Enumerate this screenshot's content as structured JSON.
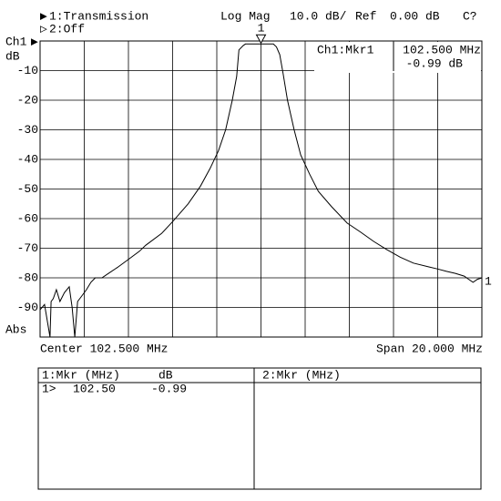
{
  "header": {
    "trace1": "1:Transmission",
    "trace2": "2:Off",
    "format": "Log Mag",
    "scale": "10.0 dB/",
    "ref": "Ref",
    "ref_value": "0.00 dB",
    "cal": "C?"
  },
  "axis_labels": {
    "channel": "Ch1",
    "unit": "dB",
    "abs": "Abs",
    "center": "Center 102.500 MHz",
    "span": "Span 20.000 MHz",
    "ref_pos": "1"
  },
  "readout": {
    "title": "Ch1:Mkr1",
    "freq": "102.500 MHz",
    "value": "-0.99 dB"
  },
  "chart_data": {
    "type": "line",
    "xlim": [
      92.5,
      112.5
    ],
    "ylim": [
      -100,
      0
    ],
    "yticks": [
      -10,
      -20,
      -30,
      -40,
      -50,
      -60,
      -70,
      -80,
      -90
    ],
    "grid": true,
    "series": [
      {
        "name": "1:Transmission",
        "color": "#000000",
        "x": [
          92.5,
          92.7,
          92.95,
          93.0,
          93.1,
          93.24,
          93.4,
          93.6,
          93.82,
          93.95,
          94.07,
          94.2,
          94.4,
          94.6,
          94.8,
          95.0,
          95.3,
          95.6,
          96.0,
          96.46,
          97.0,
          97.28,
          98.0,
          98.5,
          99.2,
          99.76,
          100.2,
          100.58,
          100.9,
          101.2,
          101.4,
          101.5,
          101.7,
          101.8,
          102.2,
          102.5,
          102.8,
          103.06,
          103.2,
          103.35,
          103.5,
          103.7,
          104.0,
          104.3,
          104.7,
          105.1,
          105.7,
          106.4,
          107.0,
          107.6,
          108.2,
          108.8,
          109.4,
          110.1,
          110.5,
          110.9,
          111.3,
          111.7,
          111.9,
          112.1,
          112.3,
          112.5
        ],
        "values": [
          -90.8,
          -89,
          -100,
          -88,
          -87,
          -84,
          -88,
          -85,
          -83,
          -90,
          -100,
          -88,
          -86,
          -84,
          -81.5,
          -80,
          -80,
          -78.5,
          -76.5,
          -74,
          -71,
          -69,
          -65,
          -61,
          -55,
          -49,
          -43,
          -37,
          -30,
          -20,
          -12,
          -3,
          -1.5,
          -1,
          -1,
          -0.99,
          -1,
          -1,
          -2,
          -4.6,
          -11,
          -20,
          -30,
          -38.5,
          -45,
          -50.8,
          -56,
          -61.5,
          -64.5,
          -67.7,
          -70.5,
          -73,
          -75,
          -76.3,
          -77,
          -77.8,
          -78.5,
          -79.4,
          -80.5,
          -81.5,
          -80.5,
          -80
        ]
      }
    ],
    "marker": {
      "label": "1",
      "x": 102.5,
      "value": -0.99
    }
  },
  "table": {
    "col1_header": "1:Mkr (MHz)",
    "col1_unit": "dB",
    "col2_header": "2:Mkr (MHz)",
    "rows": [
      [
        "1>",
        "102.50",
        "-0.99"
      ]
    ]
  }
}
